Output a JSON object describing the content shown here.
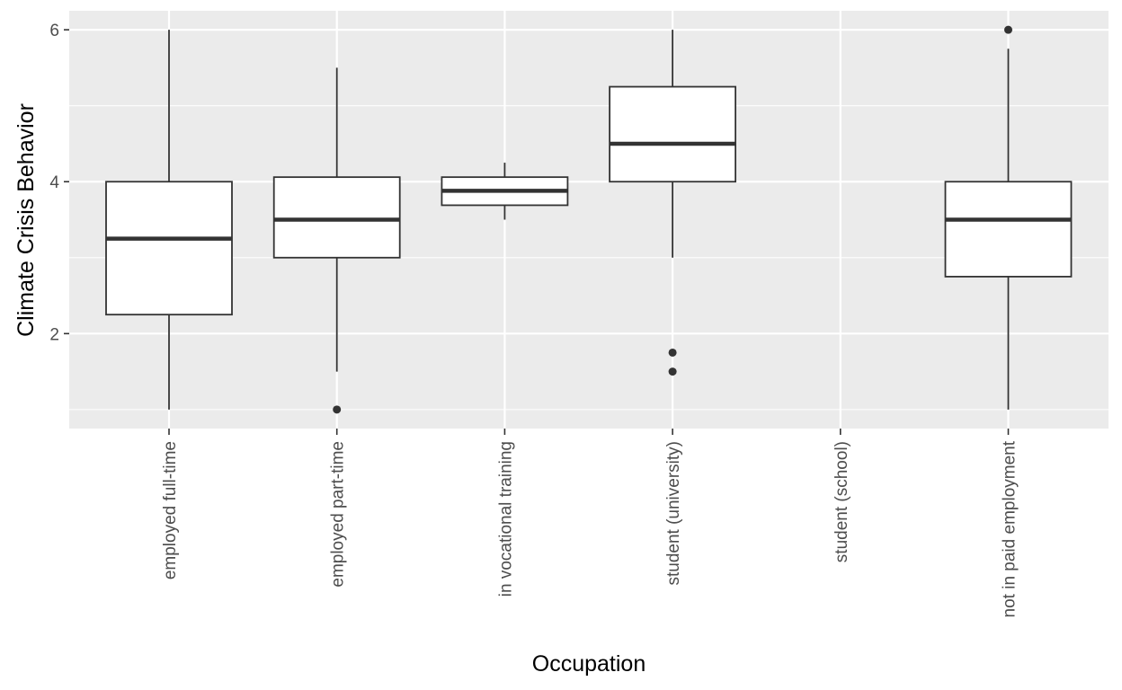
{
  "chart_data": {
    "type": "boxplot",
    "xlabel": "Occupation",
    "ylabel": "Climate Crisis Behavior",
    "ylim": [
      0.75,
      6.25
    ],
    "yticks": [
      2,
      4,
      6
    ],
    "grid": true,
    "categories": [
      "employed full-time",
      "employed part-time",
      "in vocational training",
      "student (university)",
      "student (school)",
      "not in paid employment"
    ],
    "boxes": [
      {
        "category": "employed full-time",
        "whisker_low": 1.0,
        "q1": 2.25,
        "median": 3.25,
        "q3": 4.0,
        "whisker_high": 6.0,
        "outliers": []
      },
      {
        "category": "employed part-time",
        "whisker_low": 1.5,
        "q1": 3.0,
        "median": 3.5,
        "q3": 4.06,
        "whisker_high": 5.5,
        "outliers": [
          1.0
        ]
      },
      {
        "category": "in vocational training",
        "whisker_low": 3.5,
        "q1": 3.69,
        "median": 3.88,
        "q3": 4.06,
        "whisker_high": 4.25,
        "outliers": []
      },
      {
        "category": "student (university)",
        "whisker_low": 3.0,
        "q1": 4.0,
        "median": 4.5,
        "q3": 5.25,
        "whisker_high": 6.0,
        "outliers": [
          1.75,
          1.5
        ]
      },
      {
        "category": "not in paid employment",
        "whisker_low": 1.0,
        "q1": 2.75,
        "median": 3.5,
        "q3": 4.0,
        "whisker_high": 5.75,
        "outliers": [
          6.0
        ]
      }
    ],
    "colors": {
      "panel": "#ebebeb",
      "grid": "#ffffff",
      "box_fill": "#ffffff",
      "line": "#333333",
      "tick_text": "#4d4d4d"
    }
  }
}
